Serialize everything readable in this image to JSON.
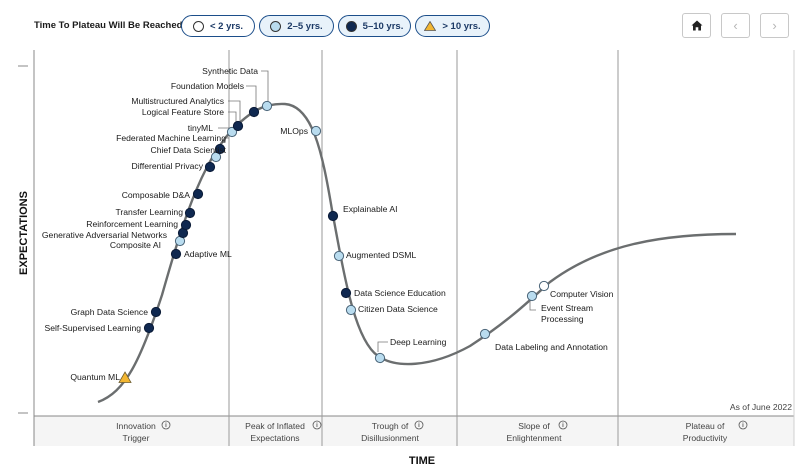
{
  "legend": {
    "title": "Time To Plateau Will Be Reached:",
    "items": [
      {
        "label": "< 2 yrs.",
        "fill": "#ffffff",
        "shape": "circle"
      },
      {
        "label": "2–5 yrs.",
        "fill": "#b9dcef",
        "shape": "circle"
      },
      {
        "label": "5–10 yrs.",
        "fill": "#0f2850",
        "shape": "circle"
      },
      {
        "label": "> 10 yrs.",
        "fill": "#f2b632",
        "shape": "triangle"
      }
    ]
  },
  "toolbar": {
    "home_icon": "home-icon",
    "prev_icon": "chevron-left-icon",
    "next_icon": "chevron-right-icon"
  },
  "colors": {
    "curve": "#6b6e6f",
    "dark": "#0f2850",
    "light": "#b9dcef",
    "white": "#ffffff",
    "triangle": "#f2b632",
    "gridline": "#9a9a9a",
    "phase_band": "#f5f5f5",
    "pill_border": "#1c4e8a"
  },
  "chart_data": {
    "type": "scatter",
    "xlabel": "TIME",
    "ylabel": "EXPECTATIONS",
    "note": "As of June 2022",
    "phases": [
      {
        "line1": "Innovation",
        "line2": "Trigger"
      },
      {
        "line1": "Peak of Inflated",
        "line2": "Expectations"
      },
      {
        "line1": "Trough of",
        "line2": "Disillusionment"
      },
      {
        "line1": "Slope of",
        "line2": "Enlightenment"
      },
      {
        "line1": "Plateau of",
        "line2": "Productivity"
      }
    ],
    "points": [
      {
        "label": "Quantum ML",
        "category": "> 10 yrs."
      },
      {
        "label": "Self-Supervised Learning",
        "category": "5–10 yrs."
      },
      {
        "label": "Graph Data Science",
        "category": "5–10 yrs."
      },
      {
        "label": "Adaptive ML",
        "category": "5–10 yrs."
      },
      {
        "label": "Composite AI",
        "category": "2–5 yrs."
      },
      {
        "label": "Generative Adversarial Networks",
        "category": "5–10 yrs."
      },
      {
        "label": "Reinforcement Learning",
        "category": "5–10 yrs."
      },
      {
        "label": "Transfer Learning",
        "category": "5–10 yrs."
      },
      {
        "label": "Composable D&A",
        "category": "5–10 yrs."
      },
      {
        "label": "Differential Privacy",
        "category": "5–10 yrs."
      },
      {
        "label": "Chief Data Scientist",
        "category": "2–5 yrs."
      },
      {
        "label": "Federated Machine Learning",
        "category": "5–10 yrs."
      },
      {
        "label": "tinyML",
        "category": "2–5 yrs."
      },
      {
        "label": "Logical Feature Store",
        "category": "5–10 yrs."
      },
      {
        "label": "Multistructured Analytics",
        "category": "5–10 yrs."
      },
      {
        "label": "Foundation Models",
        "category": "5–10 yrs."
      },
      {
        "label": "Synthetic Data",
        "category": "2–5 yrs."
      },
      {
        "label": "MLOps",
        "category": "2–5 yrs."
      },
      {
        "label": "Explainable AI",
        "category": "5–10 yrs."
      },
      {
        "label": "Augmented DSML",
        "category": "2–5 yrs."
      },
      {
        "label": "Data Science Education",
        "category": "5–10 yrs."
      },
      {
        "label": "Citizen Data Science",
        "category": "2–5 yrs."
      },
      {
        "label": "Deep Learning",
        "category": "2–5 yrs."
      },
      {
        "label": "Data Labeling and Annotation",
        "category": "2–5 yrs."
      },
      {
        "label": "Event Stream Processing",
        "category": "2–5 yrs."
      },
      {
        "label": "Computer Vision",
        "category": "< 2 yrs."
      }
    ]
  }
}
